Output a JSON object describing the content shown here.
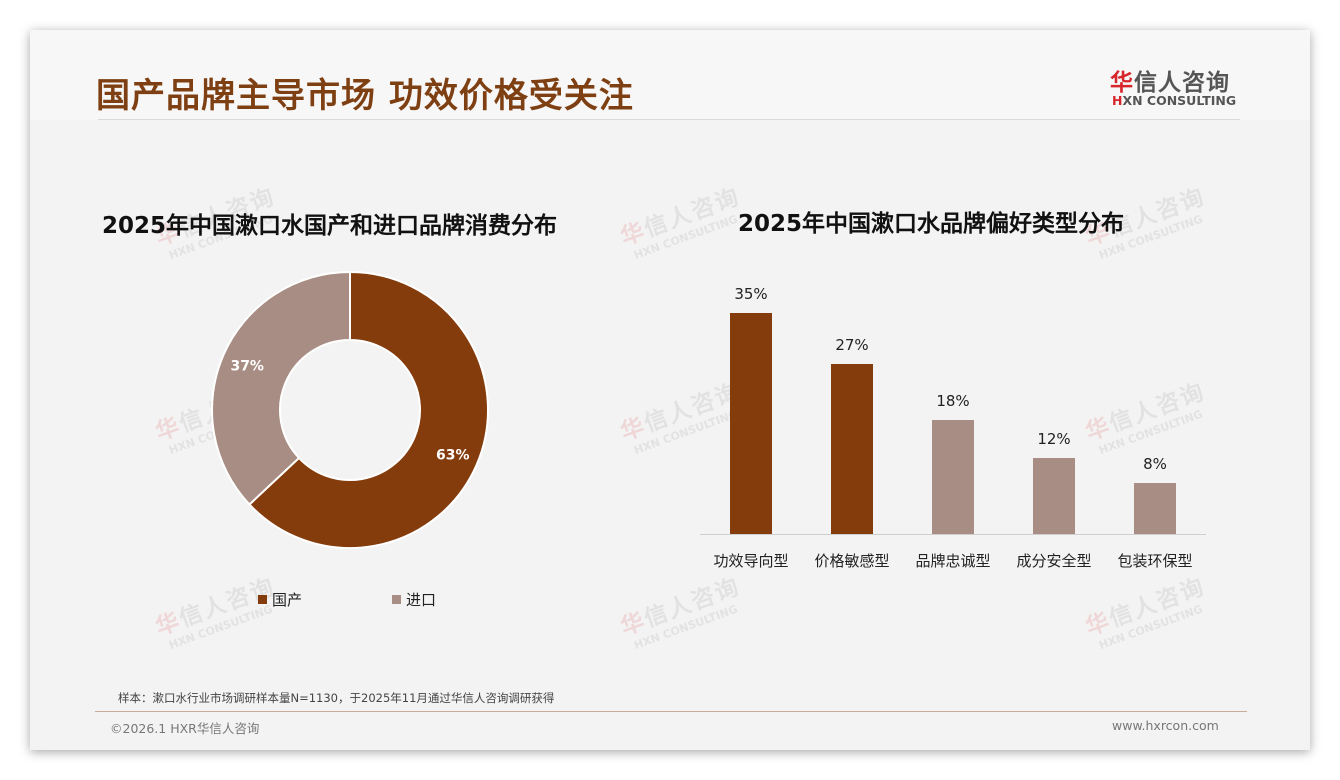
{
  "header": {
    "title": "国产品牌主导市场 功效价格受关注",
    "logo": {
      "cn_first": "华",
      "cn_rest": "信人咨询",
      "en_first": "H",
      "en_rest": "XN CONSULTING"
    }
  },
  "watermark": {
    "cn_first": "华",
    "cn_rest": "信人咨询",
    "en": "HXN CONSULTING"
  },
  "colors": {
    "primary": "#843c0c",
    "secondary": "#a88d84",
    "title": "#7e3f12"
  },
  "left_chart": {
    "title": "2025年中国漱口水国产和进口品牌消费分布",
    "legend": [
      {
        "label": "国产",
        "color": "#843c0c"
      },
      {
        "label": "进口",
        "color": "#a88d84"
      }
    ]
  },
  "right_chart": {
    "title": "2025年中国漱口水品牌偏好类型分布"
  },
  "chart_data": [
    {
      "type": "pie",
      "variant": "donut",
      "title": "2025年中国漱口水国产和进口品牌消费分布",
      "categories": [
        "国产",
        "进口"
      ],
      "values": [
        63,
        37
      ],
      "labels": [
        "63%",
        "37%"
      ],
      "colors": [
        "#843c0c",
        "#a88d84"
      ],
      "legend_position": "bottom"
    },
    {
      "type": "bar",
      "title": "2025年中国漱口水品牌偏好类型分布",
      "categories": [
        "功效导向型",
        "价格敏感型",
        "品牌忠诚型",
        "成分安全型",
        "包装环保型"
      ],
      "values": [
        35,
        27,
        18,
        12,
        8
      ],
      "labels": [
        "35%",
        "27%",
        "18%",
        "12%",
        "8%"
      ],
      "colors": [
        "#843c0c",
        "#843c0c",
        "#a88d84",
        "#a88d84",
        "#a88d84"
      ],
      "xlabel": "",
      "ylabel": "",
      "ylim": [
        0,
        40
      ],
      "grid": false
    }
  ],
  "footer": {
    "note": "样本：漱口水行业市场调研样本量N=1130，于2025年11月通过华信人咨询调研获得",
    "copyright": "©2026.1 HXR华信人咨询",
    "website": "www.hxrcon.com"
  }
}
